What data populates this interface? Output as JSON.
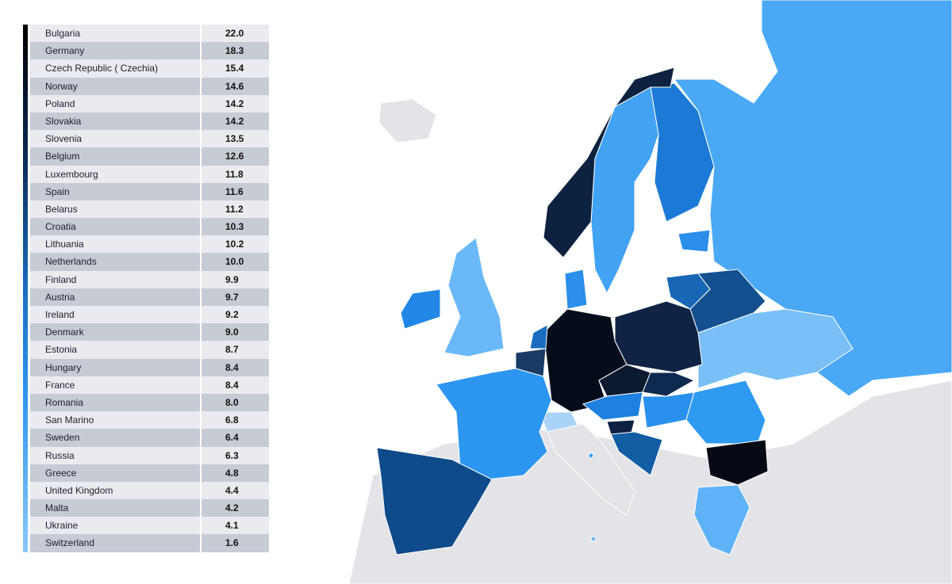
{
  "table": {
    "rows": [
      [
        "Bulgaria",
        "22.0"
      ],
      [
        "Germany",
        "18.3"
      ],
      [
        "Czech Republic ( Czechia)",
        "15.4"
      ],
      [
        "Norway",
        "14.6"
      ],
      [
        "Poland",
        "14.2"
      ],
      [
        "Slovakia",
        "14.2"
      ],
      [
        "Slovenia",
        "13.5"
      ],
      [
        "Belgium",
        "12.6"
      ],
      [
        "Luxembourg",
        "11.8"
      ],
      [
        "Spain",
        "11.6"
      ],
      [
        "Belarus",
        "11.2"
      ],
      [
        "Croatia",
        "10.3"
      ],
      [
        "Lithuania",
        "10.2"
      ],
      [
        "Netherlands",
        "10.0"
      ],
      [
        "Finland",
        "9.9"
      ],
      [
        "Austria",
        "9.7"
      ],
      [
        "Ireland",
        "9.2"
      ],
      [
        "Denmark",
        "9.0"
      ],
      [
        "Estonia",
        "8.7"
      ],
      [
        "Hungary",
        "8.4"
      ],
      [
        "France",
        "8.4"
      ],
      [
        "Romania",
        "8.0"
      ],
      [
        "San Marino",
        "6.8"
      ],
      [
        "Sweden",
        "6.4"
      ],
      [
        "Russia",
        "6.3"
      ],
      [
        "Greece",
        "4.8"
      ],
      [
        "United Kingdom",
        "4.4"
      ],
      [
        "Malta",
        "4.2"
      ],
      [
        "Ukraine",
        "4.1"
      ],
      [
        "Switzerland",
        "1.6"
      ]
    ]
  }
}
